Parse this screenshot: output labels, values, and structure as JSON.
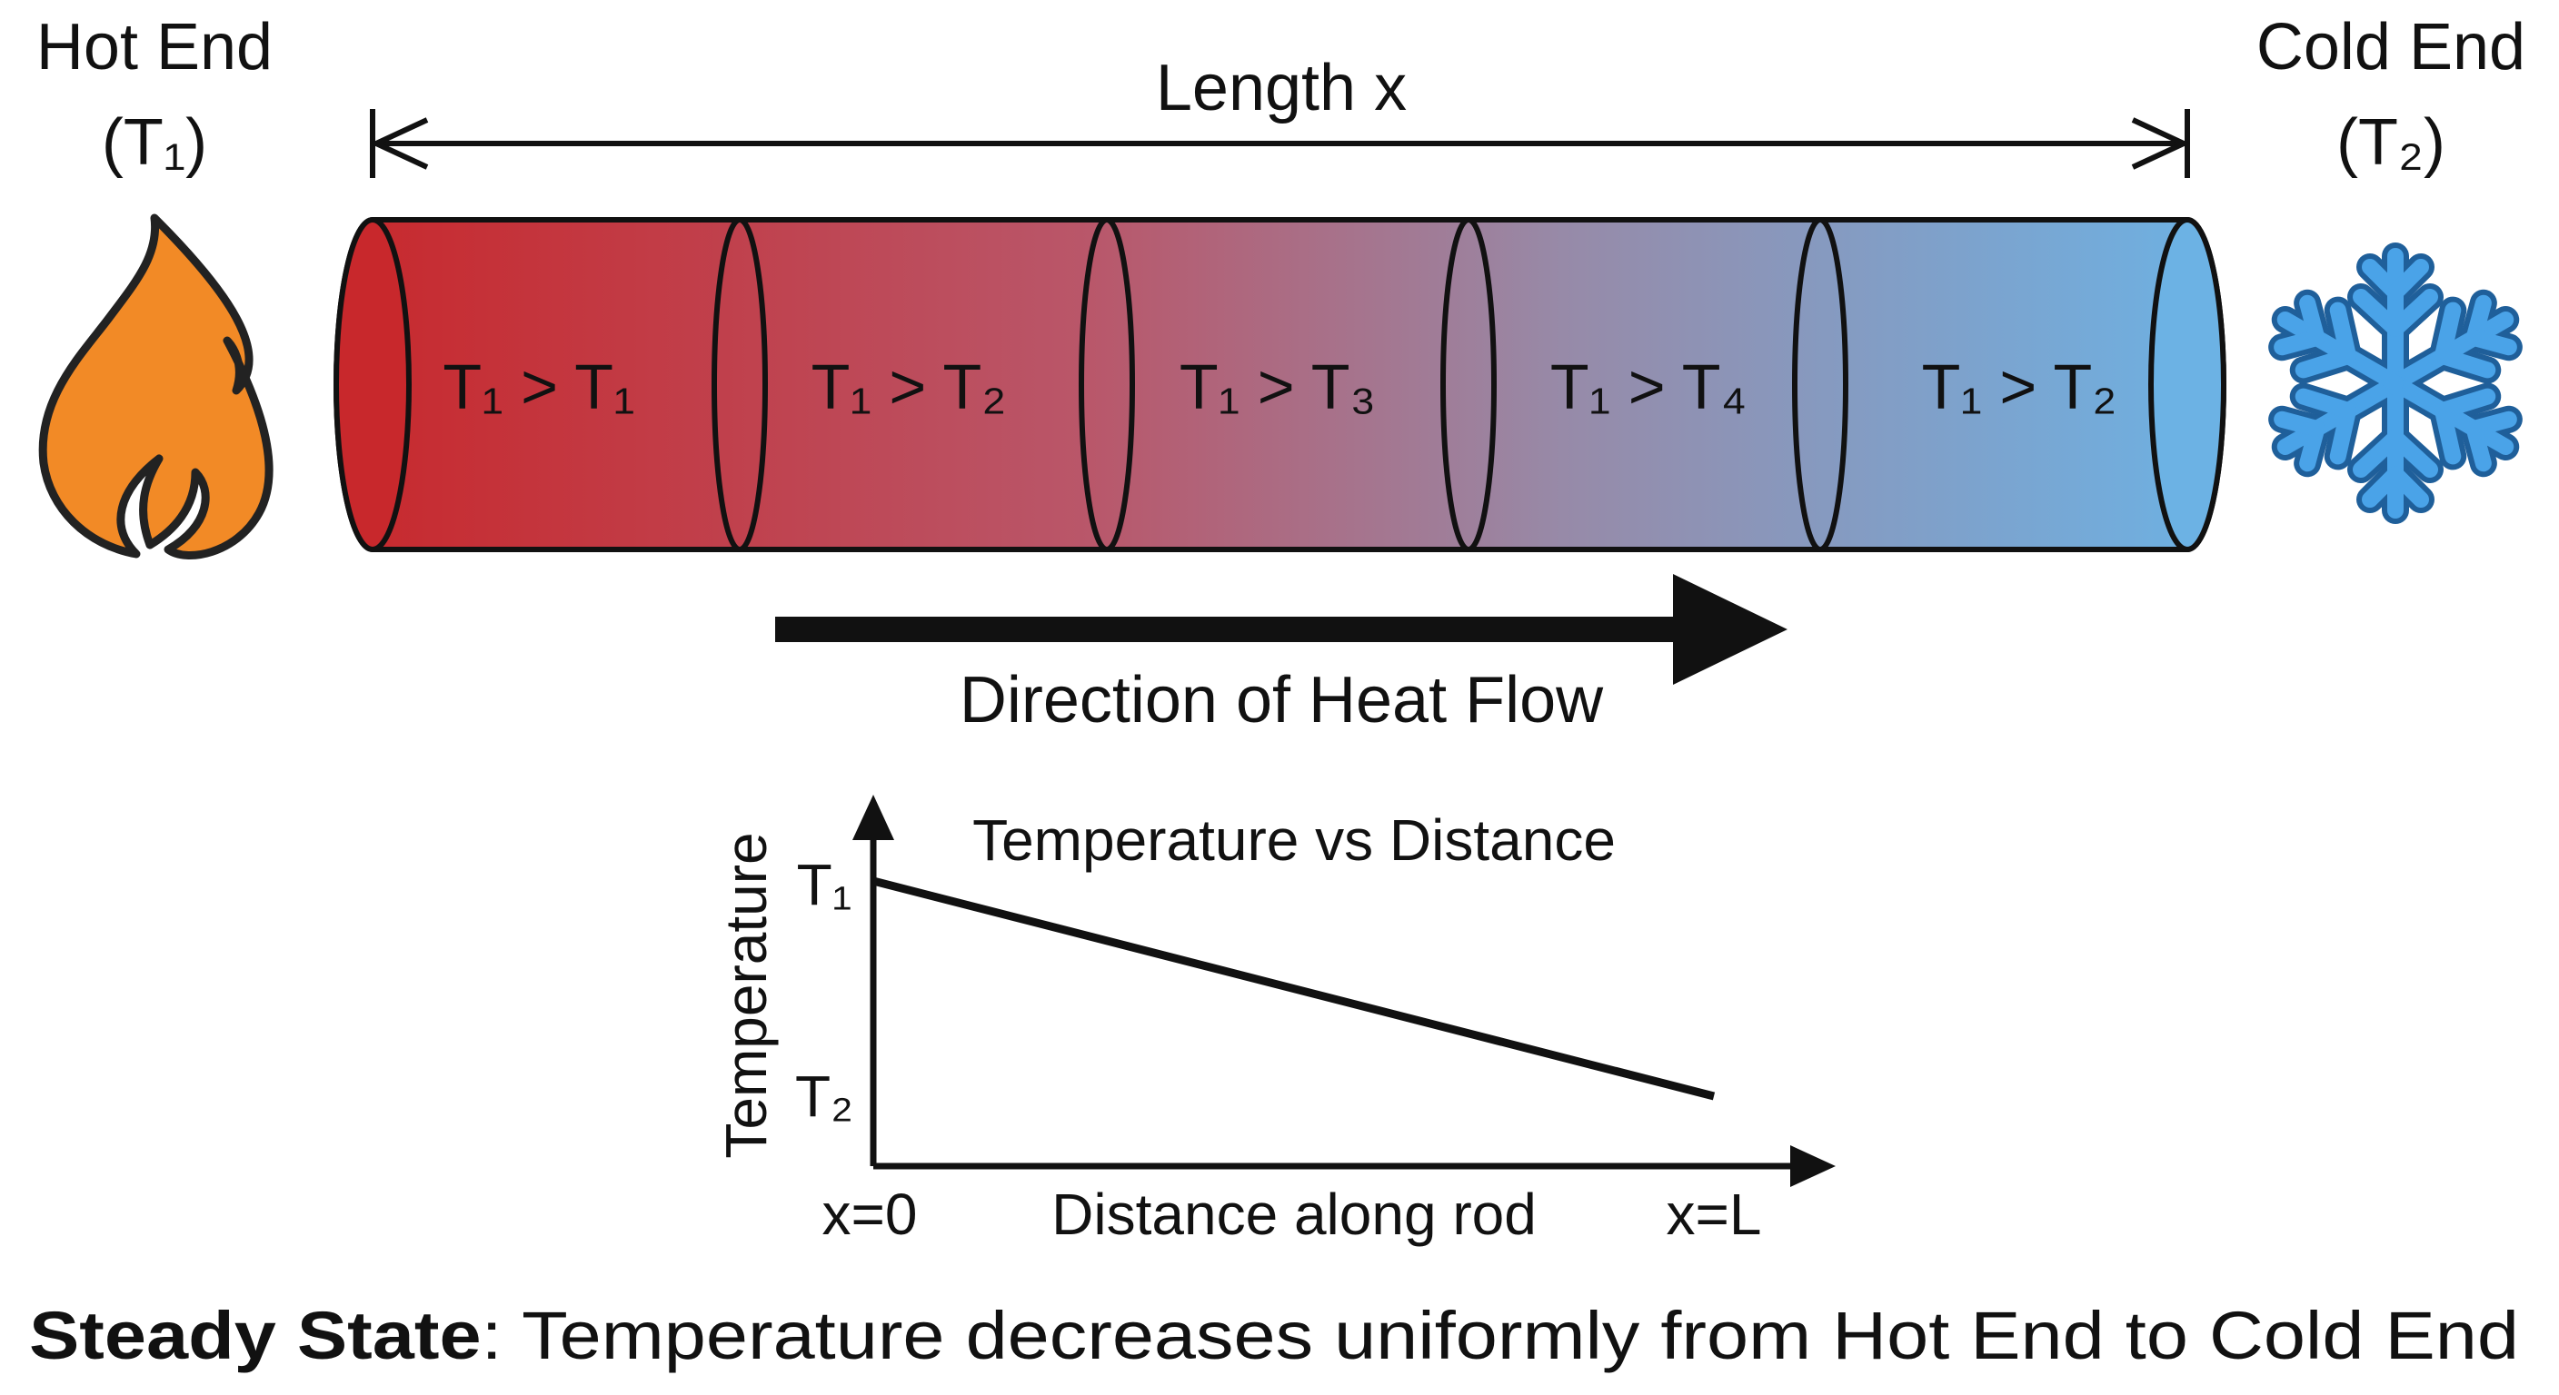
{
  "header": {
    "hot_end": {
      "label": "Hot End",
      "temp": "(T₁)"
    },
    "cold_end": {
      "label": "Cold End",
      "temp": "(T₂)"
    },
    "length_label": "Length x"
  },
  "rod": {
    "segments": [
      "T₁ > T₁",
      "T₁ > T₂",
      "T₁ > T₃",
      "T₁ > T₄",
      "T₁ > T₂"
    ]
  },
  "flow_label": "Direction of Heat Flow",
  "graph": {
    "title": "Temperature vs Distance",
    "y_axis_label": "Temperature",
    "y_labels": [
      "T₁",
      "T₂"
    ],
    "x_labels": [
      "x=0",
      "Distance along rod",
      "x=L"
    ]
  },
  "footer": {
    "bold": "Steady State",
    "text": ": Temperature decreases uniformly from Hot End to Cold End"
  }
}
